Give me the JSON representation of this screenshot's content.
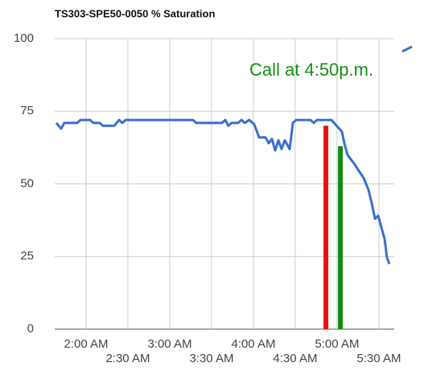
{
  "chart_data": {
    "type": "line",
    "title": "TS303-SPE50-0050 % Saturation",
    "annotation": "Call at 4:50p.m.",
    "series": [
      {
        "color": "#3a6fd0",
        "x": [
          98.6,
          102.1,
          104.4,
          113.7,
          116,
          122.9,
          125.2,
          129.8,
          132.1,
          140.2,
          143.7,
          146,
          148.3,
          196.7,
          199,
          217.5,
          219.8,
          222.1,
          224.4,
          229.1,
          231.4,
          233.7,
          237.1,
          240.6,
          244.1,
          248.7,
          251,
          253.3,
          255.6,
          257.9,
          260.2,
          262.5,
          266,
          268.3,
          270.6,
          281,
          283.3,
          285.6,
          296,
          300.6,
          303.5,
          305.2,
          307.5,
          309.8,
          312.2,
          315.6,
          319.1,
          322.5,
          324.8,
          327.2,
          329.5,
          331.8,
          334.1,
          335.8,
          337.5
        ],
        "values": [
          71,
          69,
          71,
          71,
          72,
          72,
          71,
          71,
          70,
          70,
          72,
          71,
          72,
          72,
          71,
          71,
          72,
          70,
          71,
          71,
          72,
          71,
          72,
          70.5,
          66,
          66,
          64,
          65.5,
          61.5,
          65,
          62,
          65,
          62,
          71,
          72,
          72,
          71,
          72,
          72,
          69.5,
          68,
          64,
          60,
          58.5,
          57,
          54.5,
          52,
          48,
          43.5,
          38,
          39,
          35,
          31,
          24.6,
          22.4
        ]
      }
    ],
    "markers": [
      {
        "x": 292,
        "y": 70,
        "color": "#e81010"
      },
      {
        "x": 302.4,
        "y": 63,
        "color": "#138a13"
      }
    ],
    "xlim": [
      97.5,
      341
    ],
    "xticks": [
      {
        "value": 120,
        "label": "2:00 AM"
      },
      {
        "value": 150,
        "label": "2:30 AM"
      },
      {
        "value": 180,
        "label": "3:00 AM"
      },
      {
        "value": 210,
        "label": "3:30 AM"
      },
      {
        "value": 240,
        "label": "4:00 AM"
      },
      {
        "value": 270,
        "label": "4:30 AM"
      },
      {
        "value": 300,
        "label": "5:00 AM"
      },
      {
        "value": 330,
        "label": "5:30 AM"
      }
    ],
    "ylim": [
      0,
      100
    ],
    "yticks": [
      0,
      25,
      50,
      75,
      100
    ],
    "grid": true
  }
}
